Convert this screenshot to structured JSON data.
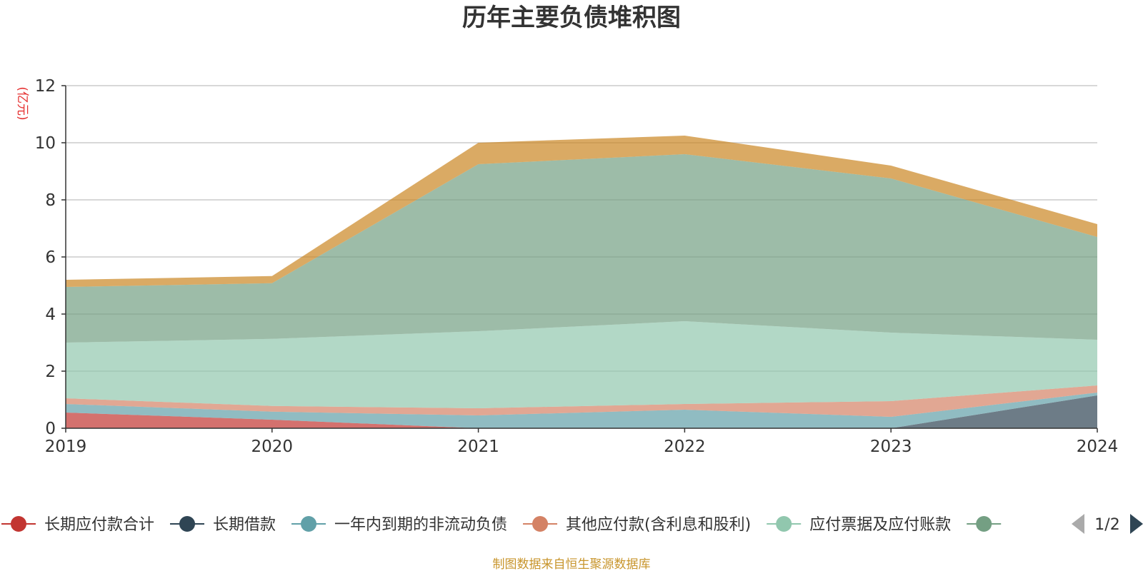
{
  "chart_data": {
    "type": "area",
    "stacked": true,
    "title": "历年主要负债堆积图",
    "unit_label": "(亿元)",
    "x": [
      "2019",
      "2020",
      "2021",
      "2022",
      "2023",
      "2024"
    ],
    "ylim": [
      0,
      12
    ],
    "y_ticks": [
      "0",
      "2",
      "4",
      "6",
      "8",
      "10",
      "12"
    ],
    "grid": true,
    "legend_position": "bottom",
    "series": [
      {
        "name": "长期应付款合计",
        "color": "#c23531",
        "values": [
          0.55,
          0.3,
          0.0,
          0.0,
          0.0,
          0.0
        ]
      },
      {
        "name": "长期借款",
        "color": "#2f4554",
        "values": [
          0.0,
          0.0,
          0.0,
          0.0,
          0.0,
          1.15
        ]
      },
      {
        "name": "一年内到期的非流动负债",
        "color": "#61a0a8",
        "values": [
          0.3,
          0.28,
          0.45,
          0.65,
          0.4,
          0.1
        ]
      },
      {
        "name": "其他应付款(含利息和股利)",
        "color": "#d48265",
        "values": [
          0.2,
          0.2,
          0.25,
          0.2,
          0.55,
          0.25
        ]
      },
      {
        "name": "应付票据及应付账款",
        "color": "#91c7ae",
        "values": [
          1.95,
          2.35,
          2.7,
          2.9,
          2.4,
          1.6
        ]
      },
      {
        "name": "",
        "color": "#749f83",
        "values": [
          1.95,
          1.95,
          5.85,
          5.85,
          5.4,
          3.6
        ]
      },
      {
        "name": "",
        "color": "#ca8622",
        "values": [
          0.25,
          0.25,
          0.75,
          0.65,
          0.45,
          0.45
        ]
      }
    ]
  },
  "legend": {
    "items": [
      {
        "label": "长期应付款合计",
        "color": "#c23531"
      },
      {
        "label": "长期借款",
        "color": "#2f4554"
      },
      {
        "label": "一年内到期的非流动负债",
        "color": "#61a0a8"
      },
      {
        "label": "其他应付款(含利息和股利)",
        "color": "#d48265"
      },
      {
        "label": "应付票据及应付账款",
        "color": "#91c7ae"
      },
      {
        "label": "",
        "color": "#749f83"
      }
    ],
    "page_indicator": "1/2",
    "prev_icon": "triangle-left-icon",
    "next_icon": "triangle-right-icon",
    "prev_color": "#aaaaaa",
    "next_color": "#2f4554"
  },
  "source_note": "制图数据来自恒生聚源数据库"
}
